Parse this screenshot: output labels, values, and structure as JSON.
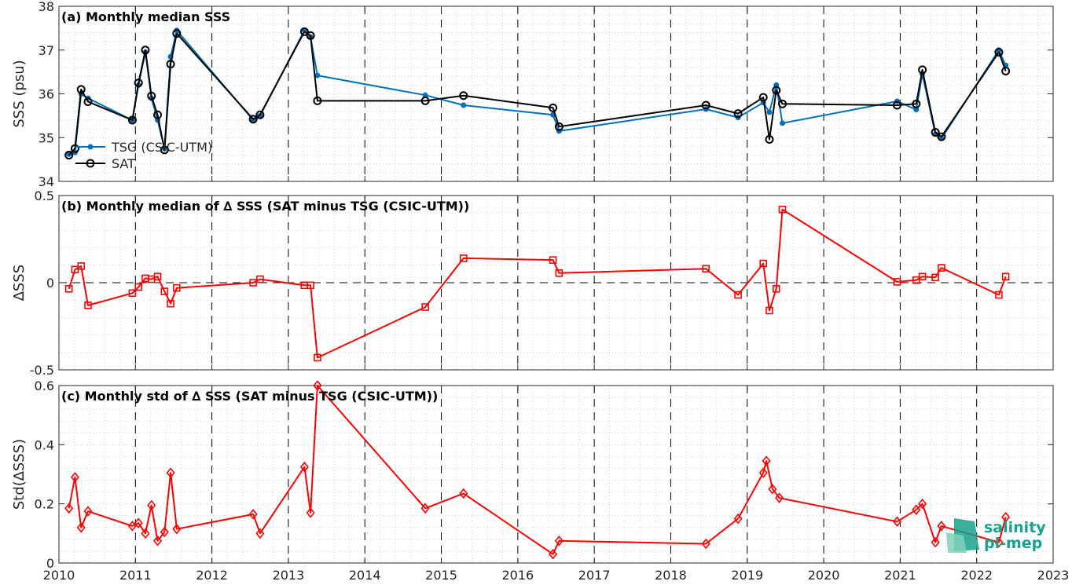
{
  "chart_data": [
    {
      "id": "a",
      "type": "line",
      "title": "(a) Monthly median SSS",
      "ylabel": "SSS (psu)",
      "xlim": [
        2010,
        2023
      ],
      "ylim": [
        34,
        38
      ],
      "yticks": [
        34,
        35,
        36,
        37,
        38
      ],
      "ytick_labels": [
        "34",
        "35",
        "36",
        "37",
        "38"
      ],
      "grid": true,
      "legend_position": "bottom-left",
      "series": [
        {
          "name": "TSG (CSIC-UTM)",
          "color": "#0072bd",
          "marker": "dot",
          "x": [
            2010.13,
            2010.21,
            2010.29,
            2010.38,
            2010.96,
            2011.04,
            2011.13,
            2011.21,
            2011.29,
            2011.38,
            2011.46,
            2011.54,
            2012.54,
            2012.63,
            2013.21,
            2013.29,
            2013.38,
            2014.79,
            2015.29,
            2016.46,
            2016.54,
            2018.46,
            2018.88,
            2019.21,
            2019.29,
            2019.38,
            2019.46,
            2020.96,
            2021.21,
            2021.29,
            2021.46,
            2021.54,
            2022.29,
            2022.38
          ],
          "y": [
            34.62,
            34.66,
            36.0,
            35.9,
            35.4,
            36.2,
            36.95,
            35.9,
            35.4,
            34.75,
            36.85,
            37.45,
            35.4,
            35.5,
            37.45,
            37.3,
            36.42,
            35.97,
            35.74,
            35.52,
            35.15,
            35.65,
            35.46,
            35.8,
            35.58,
            36.2,
            35.33,
            35.83,
            35.64,
            36.45,
            35.08,
            34.98,
            37.0,
            36.65
          ]
        },
        {
          "name": "SAT",
          "color": "#000000",
          "marker": "circle",
          "x": [
            2010.13,
            2010.21,
            2010.29,
            2010.38,
            2010.96,
            2011.04,
            2011.13,
            2011.21,
            2011.29,
            2011.38,
            2011.46,
            2011.54,
            2012.54,
            2012.63,
            2013.21,
            2013.29,
            2013.38,
            2014.79,
            2015.29,
            2016.46,
            2016.54,
            2018.46,
            2018.88,
            2019.21,
            2019.29,
            2019.38,
            2019.46,
            2020.96,
            2021.21,
            2021.29,
            2021.46,
            2021.54,
            2022.29,
            2022.38
          ],
          "y": [
            34.6,
            34.75,
            36.1,
            35.82,
            35.4,
            36.25,
            37.0,
            35.95,
            35.52,
            34.72,
            36.68,
            37.38,
            35.42,
            35.52,
            37.42,
            37.33,
            35.84,
            35.84,
            35.96,
            35.68,
            35.25,
            35.74,
            35.55,
            35.92,
            34.96,
            36.08,
            35.77,
            35.74,
            35.77,
            36.55,
            35.12,
            35.02,
            36.95,
            36.52
          ]
        }
      ]
    },
    {
      "id": "b",
      "type": "line",
      "title": "(b) Monthly median of ∆ SSS (SAT minus TSG (CSIC-UTM))",
      "ylabel": "∆SSS",
      "xlim": [
        2010,
        2023
      ],
      "ylim": [
        -0.5,
        0.5
      ],
      "yticks": [
        -0.5,
        0,
        0.5
      ],
      "ytick_labels": [
        "-0.5",
        "0",
        "0.5"
      ],
      "zero_line": true,
      "grid": true,
      "series": [
        {
          "name": "",
          "color": "#ff0000",
          "marker": "square",
          "x": [
            2010.13,
            2010.21,
            2010.29,
            2010.38,
            2010.96,
            2011.04,
            2011.13,
            2011.21,
            2011.29,
            2011.38,
            2011.46,
            2011.54,
            2012.54,
            2012.63,
            2013.21,
            2013.29,
            2013.38,
            2014.79,
            2015.29,
            2016.46,
            2016.54,
            2018.46,
            2018.88,
            2019.21,
            2019.29,
            2019.38,
            2019.46,
            2020.96,
            2021.21,
            2021.29,
            2021.46,
            2021.54,
            2022.29,
            2022.38
          ],
          "y": [
            -0.035,
            0.075,
            0.095,
            -0.13,
            -0.06,
            -0.025,
            0.025,
            0.02,
            0.035,
            -0.05,
            -0.12,
            -0.03,
            0.0,
            0.02,
            -0.015,
            -0.015,
            -0.43,
            -0.14,
            0.14,
            0.13,
            0.055,
            0.08,
            -0.07,
            0.11,
            -0.16,
            -0.035,
            0.42,
            0.005,
            0.015,
            0.035,
            0.03,
            0.085,
            -0.07,
            0.035
          ]
        }
      ]
    },
    {
      "id": "c",
      "type": "line",
      "title": "(c) Monthly std of ∆ SSS (SAT minus TSG (CSIC-UTM))",
      "ylabel": "Std(∆SSS)",
      "xlim": [
        2010,
        2023
      ],
      "ylim": [
        0,
        0.6
      ],
      "yticks": [
        0,
        0.2,
        0.4,
        0.6
      ],
      "ytick_labels": [
        "0",
        "0.2",
        "0.4",
        "0.6"
      ],
      "xticks": [
        2010,
        2011,
        2012,
        2013,
        2014,
        2015,
        2016,
        2017,
        2018,
        2019,
        2020,
        2021,
        2022,
        2023
      ],
      "xtick_labels": [
        "2010",
        "2011",
        "2012",
        "2013",
        "2014",
        "2015",
        "2016",
        "2017",
        "2018",
        "2019",
        "2020",
        "2021",
        "2022",
        "2023"
      ],
      "grid": true,
      "series": [
        {
          "name": "",
          "color": "#ff0000",
          "marker": "diamond",
          "x": [
            2010.13,
            2010.21,
            2010.29,
            2010.38,
            2010.96,
            2011.04,
            2011.13,
            2011.21,
            2011.29,
            2011.38,
            2011.46,
            2011.54,
            2012.54,
            2012.63,
            2013.21,
            2013.29,
            2013.38,
            2014.79,
            2015.29,
            2016.46,
            2016.54,
            2018.46,
            2018.88,
            2019.21,
            2019.25,
            2019.33,
            2019.42,
            2020.96,
            2021.21,
            2021.29,
            2021.46,
            2021.54,
            2022.29,
            2022.38
          ],
          "y": [
            0.185,
            0.29,
            0.12,
            0.175,
            0.125,
            0.135,
            0.1,
            0.195,
            0.075,
            0.105,
            0.305,
            0.115,
            0.165,
            0.1,
            0.325,
            0.17,
            0.6,
            0.185,
            0.235,
            0.03,
            0.075,
            0.065,
            0.15,
            0.305,
            0.345,
            0.25,
            0.22,
            0.14,
            0.18,
            0.2,
            0.07,
            0.125,
            0.07,
            0.155
          ]
        }
      ]
    }
  ],
  "logo": {
    "line1": "salinity",
    "line2": "pi-mep"
  },
  "vlines_dashed": [
    2011,
    2012,
    2013,
    2014,
    2015,
    2016,
    2017,
    2018,
    2019,
    2020,
    2021,
    2022
  ]
}
